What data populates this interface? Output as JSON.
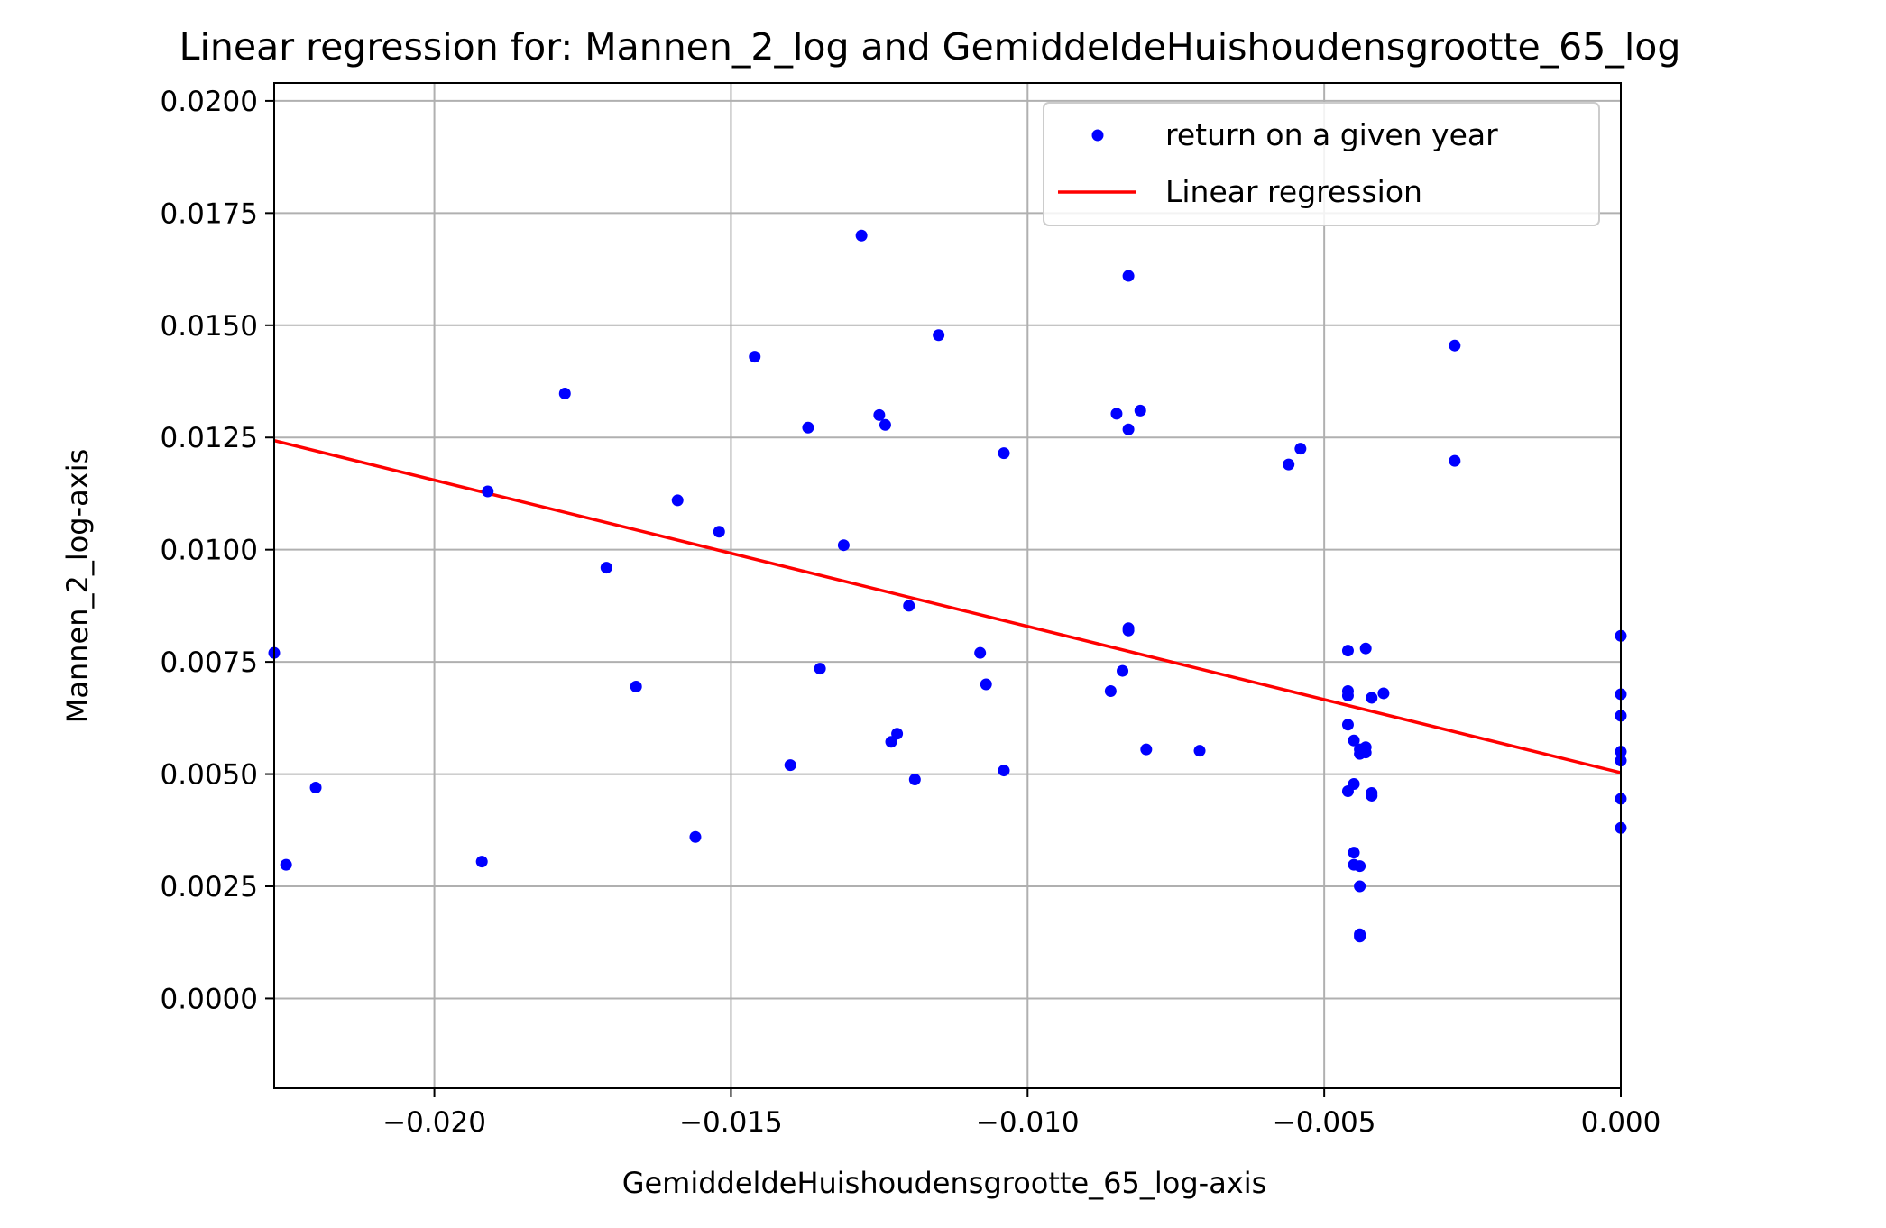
{
  "chart_data": {
    "type": "scatter",
    "title": "Linear regression for: Mannen_2_log and GemiddeldeHuishoudensgrootte_65_log",
    "xlabel": "GemiddeldeHuishoudensgrootte_65_log-axis",
    "ylabel": "Mannen_2_log-axis",
    "xlim": [
      -0.0227,
      0.0
    ],
    "ylim": [
      -0.002,
      0.0204
    ],
    "grid": true,
    "legend_position": "top-right",
    "x_ticks": [
      "−0.020",
      "−0.015",
      "−0.010",
      "−0.005",
      "0.000"
    ],
    "x_tick_values": [
      -0.02,
      -0.015,
      -0.01,
      -0.005,
      0.0
    ],
    "y_ticks": [
      "0.0000",
      "0.0025",
      "0.0050",
      "0.0075",
      "0.0100",
      "0.0125",
      "0.0150",
      "0.0175",
      "0.0200"
    ],
    "y_tick_values": [
      0.0,
      0.0025,
      0.005,
      0.0075,
      0.01,
      0.0125,
      0.015,
      0.0175,
      0.02
    ],
    "series": [
      {
        "name": "return on a given year",
        "kind": "scatter",
        "color": "#0000ff",
        "points": [
          [
            -0.0227,
            0.0077
          ],
          [
            -0.0225,
            0.00298
          ],
          [
            -0.022,
            0.0047
          ],
          [
            -0.0192,
            0.00305
          ],
          [
            -0.0191,
            0.0113
          ],
          [
            -0.0178,
            0.01348
          ],
          [
            -0.0171,
            0.0096
          ],
          [
            -0.0166,
            0.00695
          ],
          [
            -0.0159,
            0.0111
          ],
          [
            -0.0156,
            0.0036
          ],
          [
            -0.0152,
            0.0104
          ],
          [
            -0.0146,
            0.0143
          ],
          [
            -0.014,
            0.0052
          ],
          [
            -0.0137,
            0.01272
          ],
          [
            -0.0135,
            0.00735
          ],
          [
            -0.0131,
            0.0101
          ],
          [
            -0.0128,
            0.017
          ],
          [
            -0.0125,
            0.013
          ],
          [
            -0.0124,
            0.01278
          ],
          [
            -0.0123,
            0.00572
          ],
          [
            -0.0122,
            0.0059
          ],
          [
            -0.012,
            0.00875
          ],
          [
            -0.0119,
            0.00488
          ],
          [
            -0.0115,
            0.01478
          ],
          [
            -0.0108,
            0.0077
          ],
          [
            -0.0107,
            0.007
          ],
          [
            -0.0104,
            0.01215
          ],
          [
            -0.0104,
            0.00508
          ],
          [
            -0.0086,
            0.00685
          ],
          [
            -0.0085,
            0.01303
          ],
          [
            -0.0084,
            0.0073
          ],
          [
            -0.0083,
            0.0161
          ],
          [
            -0.0083,
            0.0082
          ],
          [
            -0.0083,
            0.00825
          ],
          [
            -0.0083,
            0.01268
          ],
          [
            -0.0081,
            0.0131
          ],
          [
            -0.008,
            0.00555
          ],
          [
            -0.0071,
            0.00552
          ],
          [
            -0.0056,
            0.0119
          ],
          [
            -0.0054,
            0.01225
          ],
          [
            -0.0046,
            0.00675
          ],
          [
            -0.0046,
            0.00775
          ],
          [
            -0.0046,
            0.0061
          ],
          [
            -0.0046,
            0.00685
          ],
          [
            -0.0046,
            0.00462
          ],
          [
            -0.0045,
            0.00325
          ],
          [
            -0.0045,
            0.00298
          ],
          [
            -0.0045,
            0.00575
          ],
          [
            -0.0045,
            0.00478
          ],
          [
            -0.0044,
            0.00545
          ],
          [
            -0.0044,
            0.00295
          ],
          [
            -0.0044,
            0.00555
          ],
          [
            -0.0044,
            0.00143
          ],
          [
            -0.0044,
            0.00138
          ],
          [
            -0.0044,
            0.0025
          ],
          [
            -0.0043,
            0.0078
          ],
          [
            -0.0043,
            0.00548
          ],
          [
            -0.0043,
            0.0056
          ],
          [
            -0.0042,
            0.00452
          ],
          [
            -0.0042,
            0.00458
          ],
          [
            -0.0042,
            0.0067
          ],
          [
            -0.004,
            0.0068
          ],
          [
            -0.0028,
            0.01455
          ],
          [
            -0.0028,
            0.01198
          ],
          [
            0.0,
            0.00808
          ],
          [
            0.0,
            0.00678
          ],
          [
            0.0,
            0.0063
          ],
          [
            0.0,
            0.0055
          ],
          [
            0.0,
            0.0053
          ],
          [
            0.0,
            0.00445
          ],
          [
            0.0,
            0.0038
          ]
        ]
      },
      {
        "name": "Linear regression",
        "kind": "line",
        "color": "#ff0000",
        "points": [
          [
            -0.0227,
            0.01243
          ],
          [
            0.0,
            0.00503
          ]
        ]
      }
    ]
  }
}
